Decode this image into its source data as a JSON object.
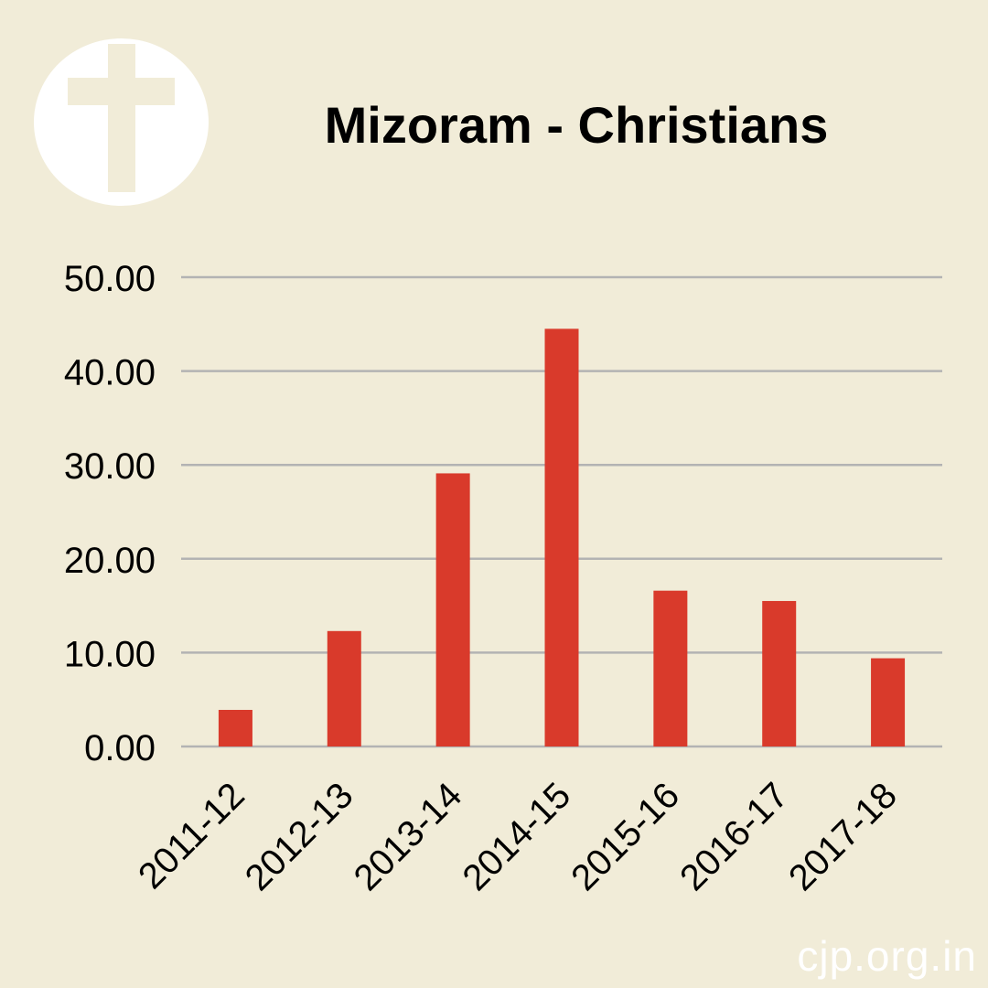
{
  "title": "Mizoram - Christians",
  "icon": "cross-icon",
  "watermark": "cjp.org.in",
  "colors": {
    "background": "#f1ecd8",
    "bar": "#d93a2b",
    "grid": "#b3b3b3",
    "icon": "#ffffff"
  },
  "chart_data": {
    "type": "bar",
    "title": "Mizoram - Christians",
    "xlabel": "",
    "ylabel": "",
    "categories": [
      "2011-12",
      "2012-13",
      "2013-14",
      "2014-15",
      "2015-16",
      "2016-17",
      "2017-18"
    ],
    "values": [
      3.9,
      12.3,
      29.1,
      44.5,
      16.6,
      15.5,
      9.4
    ],
    "ylim": [
      0,
      50
    ],
    "yticks": [
      "0.00",
      "10.00",
      "20.00",
      "30.00",
      "40.00",
      "50.00"
    ],
    "grid": true,
    "legend": "none"
  }
}
